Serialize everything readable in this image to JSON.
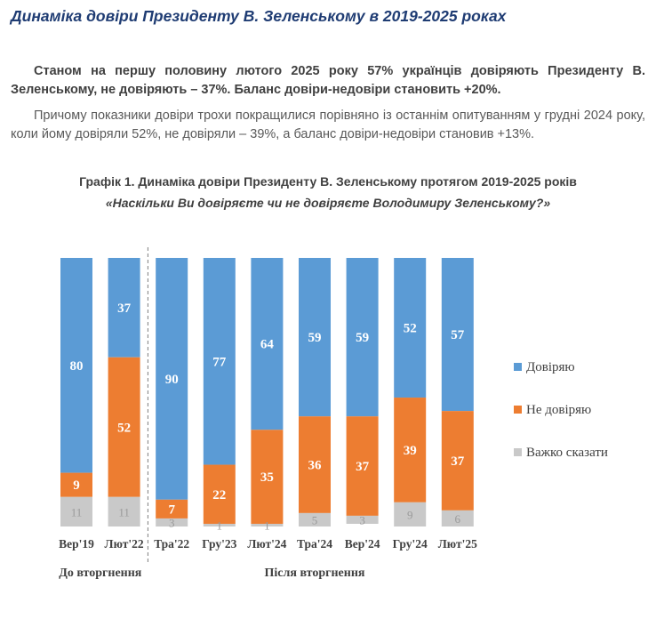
{
  "header": {
    "title": "Динаміка довіри Президенту В. Зеленському в 2019-2025 роках"
  },
  "body": {
    "paragraph_bold": "Станом на першу половину лютого 2025 року 57% українців довіряють Президенту В. Зеленському, не довіряють – 37%. Баланс довіри-недовіри становить +20%.",
    "paragraph_normal": "Причому показники довіри трохи покращилися порівняно із останнім опитуванням у грудні 2024 року, коли йому довіряли 52%, не довіряли – 39%, а баланс довіри-недовіри становив +13%."
  },
  "chart_data": {
    "type": "bar",
    "stacked": true,
    "title": "Графік 1. Динаміка довіри Президенту В. Зеленському протягом 2019-2025 років",
    "subtitle": "«Наскільки Ви довіряєте чи не довіряєте Володимиру Зеленському?»",
    "categories": [
      "Вер'19",
      "Лют'22",
      "Тра'22",
      "Гру'23",
      "Лют'24",
      "Тра'24",
      "Вер'24",
      "Гру'24",
      "Лют'25"
    ],
    "series": [
      {
        "name": "Довіряю",
        "color": "#5b9bd5",
        "values": [
          80,
          37,
          90,
          77,
          64,
          59,
          59,
          52,
          57
        ]
      },
      {
        "name": "Не довіряю",
        "color": "#ed7d31",
        "values": [
          9,
          52,
          7,
          22,
          35,
          36,
          37,
          39,
          37
        ]
      },
      {
        "name": "Важко сказати",
        "color": "#c9c9c9",
        "values": [
          11,
          11,
          3,
          1,
          1,
          5,
          3,
          9,
          6
        ]
      }
    ],
    "ylim": [
      0,
      100
    ],
    "grid": false,
    "legend_position": "right",
    "groups": [
      {
        "label": "До вторгнення",
        "from": 0,
        "to": 1
      },
      {
        "label": "Після вторгнення",
        "from": 2,
        "to": 8
      }
    ],
    "divider_after_index": 1
  }
}
